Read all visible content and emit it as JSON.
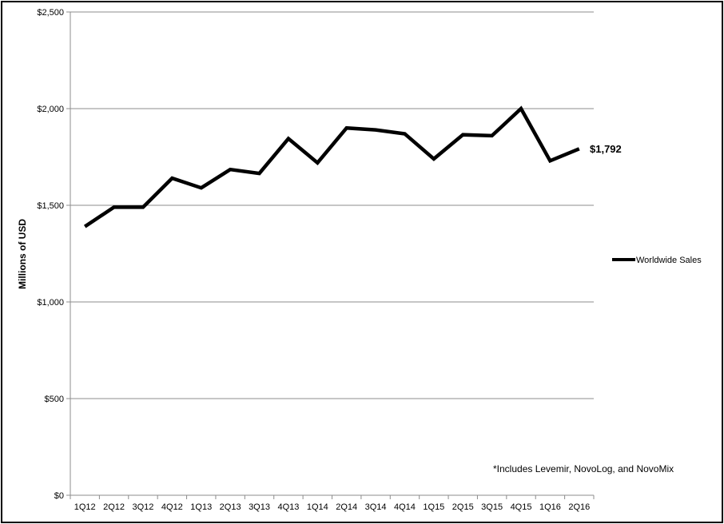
{
  "chart_data": {
    "type": "line",
    "title": "",
    "xlabel": "",
    "ylabel": "Millions of USD",
    "ylim": [
      0,
      2500
    ],
    "y_ticks": [
      "$0",
      "$500",
      "$1,000",
      "$1,500",
      "$2,000",
      "$2,500"
    ],
    "y_tick_values": [
      0,
      500,
      1000,
      1500,
      2000,
      2500
    ],
    "categories": [
      "1Q12",
      "2Q12",
      "3Q12",
      "4Q12",
      "1Q13",
      "2Q13",
      "3Q13",
      "4Q13",
      "1Q14",
      "2Q14",
      "3Q14",
      "4Q14",
      "1Q15",
      "2Q15",
      "3Q15",
      "4Q15",
      "1Q16",
      "2Q16"
    ],
    "series": [
      {
        "name": "Worldwide Sales",
        "color": "#000000",
        "values": [
          1390,
          1490,
          1490,
          1640,
          1590,
          1685,
          1665,
          1845,
          1720,
          1900,
          1890,
          1870,
          1740,
          1865,
          1860,
          2000,
          1730,
          1792
        ]
      }
    ],
    "end_label": "$1,792",
    "grid": "horizontal",
    "legend_position": "right"
  },
  "footnote": "*Includes Levemir, NovoLog, and NovoMix"
}
